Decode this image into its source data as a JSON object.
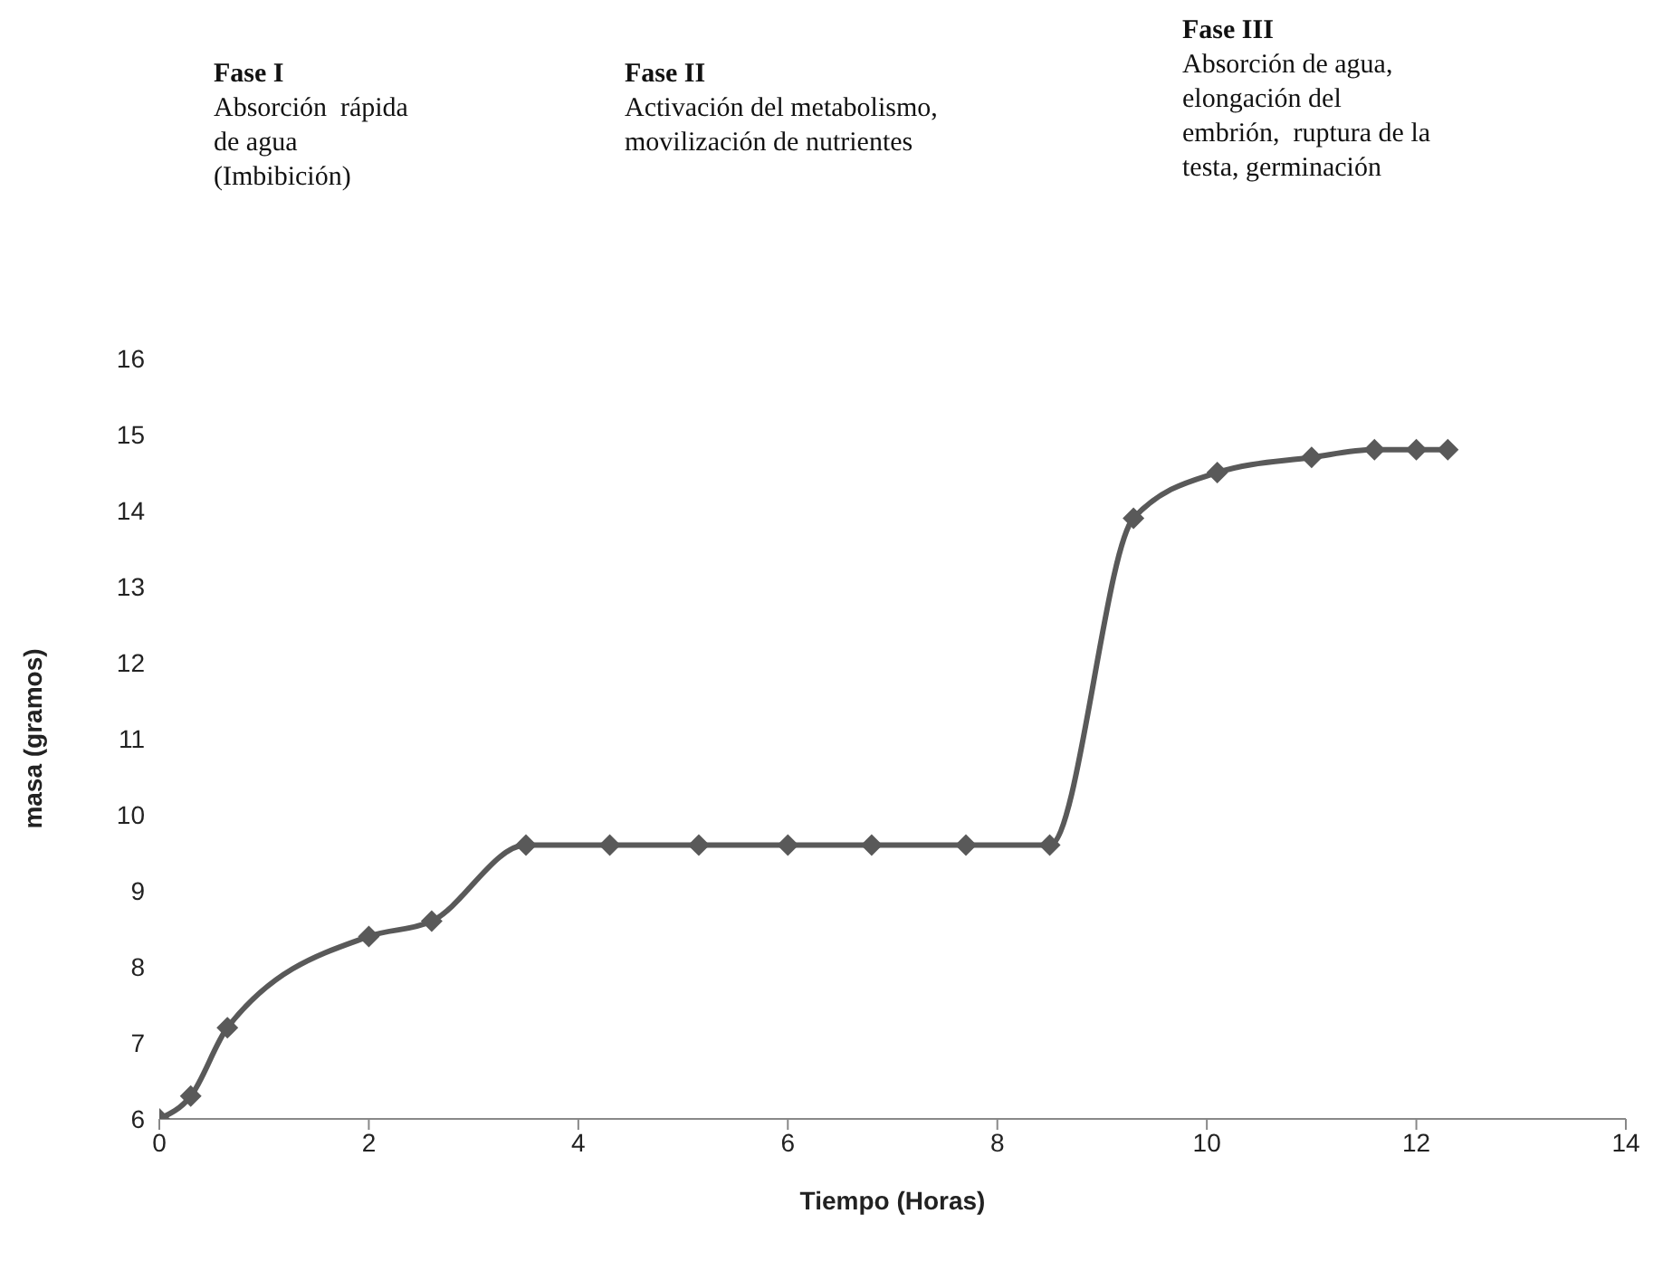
{
  "chart_data": {
    "type": "line",
    "xlabel": "Tiempo (Horas)",
    "ylabel": "masa (gramos)",
    "annotations": [
      "Fase I\nAbsorción  rápida\nde agua\n(Imbibición)",
      "Fase II\nActivación del metabolismo,\nmovilización de nutrientes",
      "Fase III\nAbsorción de agua,\nelongación del\nembrión,  ruptura de la\ntesta, germinación"
    ],
    "x": [
      0,
      0.3,
      0.65,
      2,
      2.6,
      3.5,
      4.3,
      5.15,
      6,
      6.8,
      7.7,
      8.5,
      9.3,
      10.1,
      11,
      11.6,
      12,
      12.3
    ],
    "series": [
      {
        "color": "#595959",
        "values": [
          6,
          6.3,
          7.2,
          8.4,
          8.6,
          9.6,
          9.6,
          9.6,
          9.6,
          9.6,
          9.6,
          9.6,
          13.9,
          14.5,
          14.7,
          14.8,
          14.8,
          14.8
        ]
      }
    ],
    "xlim": [
      0,
      14
    ],
    "xticks": [
      0,
      2,
      4,
      6,
      8,
      10,
      12,
      14
    ],
    "ylim": [
      6,
      16
    ],
    "yticks": [
      6,
      7,
      8,
      9,
      10,
      11,
      12,
      13,
      14,
      15,
      16
    ],
    "grid": false,
    "marker": "diamond",
    "line_style": "solid"
  }
}
